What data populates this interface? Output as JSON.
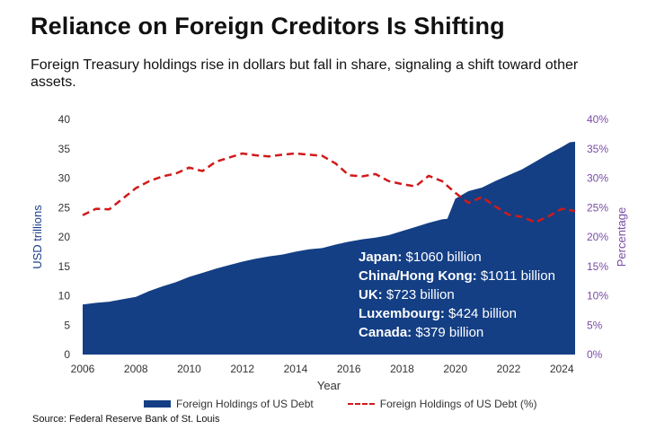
{
  "title": "Reliance on Foreign Creditors Is Shifting",
  "subtitle": "Foreign Treasury holdings rise in dollars but fall in share, signaling a shift toward other assets.",
  "source": "Source: Federal Reserve Bank of St. Louis",
  "colors": {
    "area": "#143f85",
    "line": "#d11a1a",
    "right_axis": "#7a4ca6"
  },
  "annotations": [
    {
      "label": "Japan:",
      "value": "$1060 billion"
    },
    {
      "label": "China/Hong Kong:",
      "value": "$1011 billion"
    },
    {
      "label": "UK:",
      "value": "$723 billion"
    },
    {
      "label": "Luxembourg:",
      "value": "$424 billion"
    },
    {
      "label": "Canada:",
      "value": " $379 billion"
    }
  ],
  "chart_data": {
    "type": "area",
    "xlabel": "Year",
    "ylabel": "USD trillions",
    "ylabel_right": "Percentage",
    "xlim": [
      2006,
      2024.5
    ],
    "ylim": [
      0,
      40
    ],
    "ylim_right": [
      0,
      40
    ],
    "x_ticks": [
      "2006",
      "2008",
      "2010",
      "2012",
      "2014",
      "2016",
      "2018",
      "2020",
      "2022",
      "2024"
    ],
    "y_ticks": [
      "0",
      "5",
      "10",
      "15",
      "20",
      "25",
      "30",
      "35",
      "40"
    ],
    "y_ticks_right": [
      "0%",
      "5%",
      "10%",
      "15%",
      "20%",
      "25%",
      "30%",
      "35%",
      "40%"
    ],
    "grid": false,
    "legend": "bottom",
    "series": [
      {
        "name": "Foreign Holdings of US Debt",
        "type": "area",
        "axis": "left",
        "x": [
          2006,
          2006.5,
          2007,
          2007.5,
          2008,
          2008.5,
          2009,
          2009.5,
          2010,
          2010.5,
          2011,
          2011.5,
          2012,
          2012.5,
          2013,
          2013.5,
          2014,
          2014.5,
          2015,
          2015.5,
          2016,
          2016.5,
          2017,
          2017.5,
          2018,
          2018.5,
          2019,
          2019.5,
          2019.7,
          2020,
          2020.5,
          2021,
          2021.5,
          2022,
          2022.5,
          2023,
          2023.5,
          2024,
          2024.3,
          2024.5
        ],
        "values": [
          8.5,
          8.8,
          9.0,
          9.4,
          9.8,
          10.8,
          11.6,
          12.3,
          13.2,
          13.9,
          14.6,
          15.2,
          15.8,
          16.3,
          16.7,
          17.0,
          17.5,
          17.9,
          18.1,
          18.7,
          19.2,
          19.6,
          19.9,
          20.3,
          21.0,
          21.7,
          22.4,
          23.0,
          23.1,
          26.5,
          27.8,
          28.4,
          29.5,
          30.5,
          31.5,
          32.8,
          34.1,
          35.3,
          36.1,
          36.2
        ]
      },
      {
        "name": "Foreign Holdings of US Debt (%)",
        "type": "line",
        "axis": "right",
        "x": [
          2006,
          2006.5,
          2007,
          2007.5,
          2008,
          2008.5,
          2009,
          2009.5,
          2010,
          2010.5,
          2011,
          2011.5,
          2012,
          2012.5,
          2013,
          2013.5,
          2014,
          2014.5,
          2015,
          2015.5,
          2016,
          2016.5,
          2017,
          2017.5,
          2018,
          2018.5,
          2019,
          2019.5,
          2020,
          2020.5,
          2021,
          2021.5,
          2022,
          2022.5,
          2023,
          2023.5,
          2024,
          2024.5
        ],
        "values": [
          23.7,
          24.8,
          24.7,
          26.5,
          28.3,
          29.5,
          30.3,
          30.8,
          31.8,
          31.2,
          32.8,
          33.5,
          34.2,
          33.9,
          33.7,
          34.0,
          34.2,
          34.0,
          33.8,
          32.5,
          30.5,
          30.3,
          30.7,
          29.5,
          29.0,
          28.6,
          30.4,
          29.5,
          27.5,
          25.8,
          26.8,
          25.2,
          23.8,
          23.4,
          22.5,
          23.5,
          24.8,
          24.4
        ]
      }
    ]
  }
}
